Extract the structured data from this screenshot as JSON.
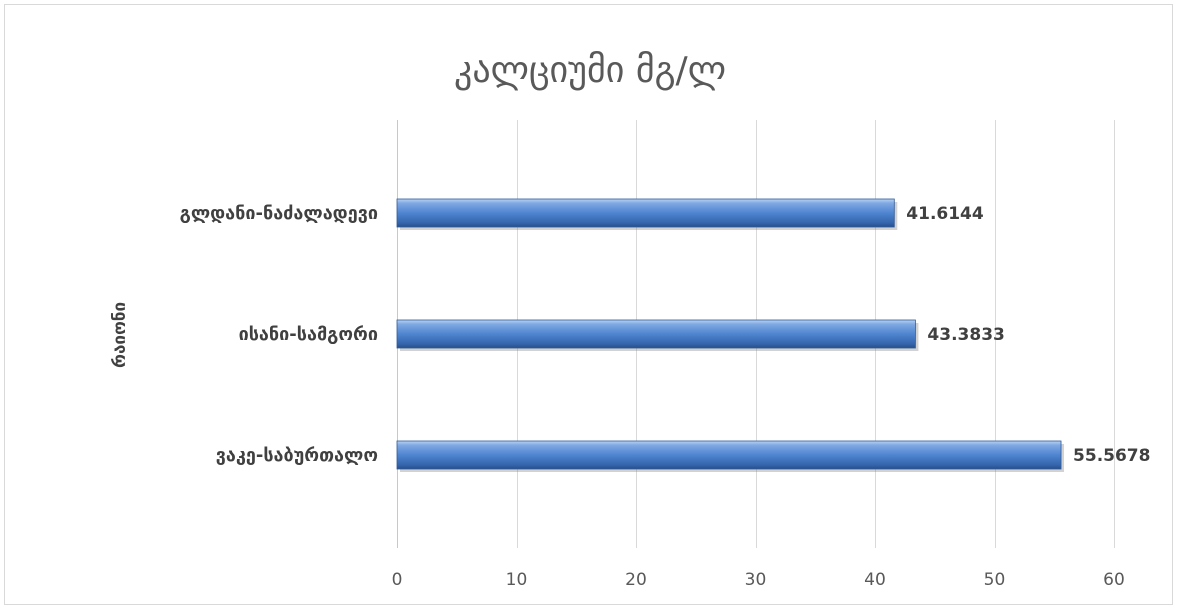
{
  "chart_data": {
    "type": "bar",
    "orientation": "horizontal",
    "title": "კალციუმი მგ/ლ",
    "xlabel": "",
    "ylabel": "რაიონი",
    "categories": [
      "გლდანი-ნაძალადევი",
      "ისანი-სამგორი",
      "ვაკე-საბურთალო"
    ],
    "values": [
      41.6144,
      43.3833,
      55.5678
    ],
    "xlim": [
      0,
      60
    ],
    "x_ticks": [
      0,
      10,
      20,
      30,
      40,
      50,
      60
    ],
    "grid": true,
    "legend": "none",
    "data_labels": true,
    "bar_color": "#4f81bd"
  }
}
